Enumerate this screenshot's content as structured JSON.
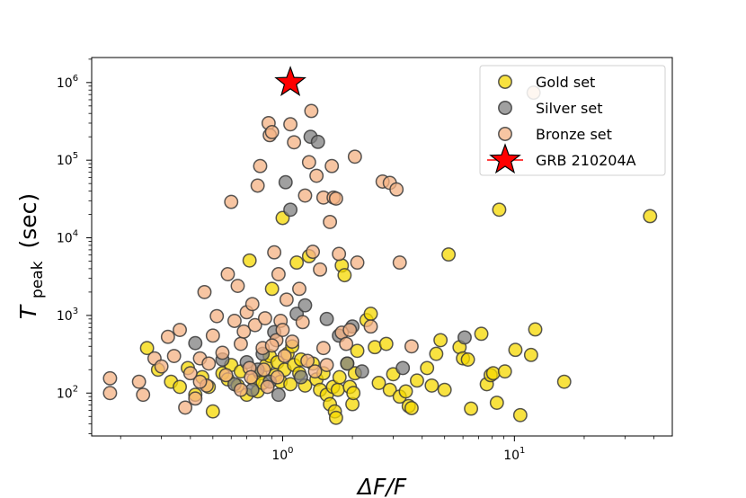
{
  "chart_data": {
    "type": "scatter",
    "xlabel": "ΔF/F",
    "ylabel_main": "T",
    "ylabel_sub": "peak",
    "ylabel_unit": "(sec)",
    "x_scale": "log",
    "y_scale": "log",
    "xlim": [
      0.15,
      48
    ],
    "ylim": [
      28,
      2100000
    ],
    "grid": false,
    "legend_position": "top-right",
    "x_ticks": [
      {
        "value": 1,
        "base": "10",
        "exp": "0"
      },
      {
        "value": 10,
        "base": "10",
        "exp": "1"
      }
    ],
    "y_ticks": [
      {
        "value": 100,
        "base": "10",
        "exp": "2"
      },
      {
        "value": 1000,
        "base": "10",
        "exp": "3"
      },
      {
        "value": 10000,
        "base": "10",
        "exp": "4"
      },
      {
        "value": 100000,
        "base": "10",
        "exp": "5"
      },
      {
        "value": 1000000,
        "base": "10",
        "exp": "6"
      }
    ],
    "series": [
      {
        "name": "Gold set",
        "marker": "circle",
        "color": "#f5d800",
        "edge": "#3a3a3a",
        "points": [
          [
            0.26,
            380
          ],
          [
            0.29,
            200
          ],
          [
            0.33,
            140
          ],
          [
            0.36,
            120
          ],
          [
            0.39,
            210
          ],
          [
            0.42,
            95
          ],
          [
            0.45,
            160
          ],
          [
            0.48,
            120
          ],
          [
            0.5,
            58
          ],
          [
            0.55,
            180
          ],
          [
            0.58,
            150
          ],
          [
            0.6,
            230
          ],
          [
            0.64,
            125
          ],
          [
            0.66,
            190
          ],
          [
            0.7,
            95
          ],
          [
            0.72,
            5100
          ],
          [
            0.75,
            150
          ],
          [
            0.78,
            105
          ],
          [
            0.8,
            180
          ],
          [
            0.82,
            135
          ],
          [
            0.85,
            230
          ],
          [
            0.88,
            300
          ],
          [
            0.9,
            2200
          ],
          [
            0.93,
            170
          ],
          [
            0.95,
            250
          ],
          [
            0.98,
            140
          ],
          [
            1.0,
            18000
          ],
          [
            1.02,
            200
          ],
          [
            1.05,
            320
          ],
          [
            1.08,
            130
          ],
          [
            1.1,
            400
          ],
          [
            1.12,
            230
          ],
          [
            1.15,
            4800
          ],
          [
            1.18,
            180
          ],
          [
            1.2,
            270
          ],
          [
            1.25,
            125
          ],
          [
            1.3,
            5800
          ],
          [
            1.35,
            240
          ],
          [
            1.4,
            150
          ],
          [
            1.45,
            110
          ],
          [
            1.5,
            180
          ],
          [
            1.55,
            95
          ],
          [
            1.6,
            72
          ],
          [
            1.65,
            120
          ],
          [
            1.68,
            58
          ],
          [
            1.7,
            48
          ],
          [
            1.73,
            110
          ],
          [
            1.76,
            160
          ],
          [
            1.8,
            4400
          ],
          [
            1.85,
            3300
          ],
          [
            1.9,
            240
          ],
          [
            1.95,
            120
          ],
          [
            2.0,
            72
          ],
          [
            2.02,
            100
          ],
          [
            2.05,
            180
          ],
          [
            2.1,
            350
          ],
          [
            2.3,
            870
          ],
          [
            2.4,
            1050
          ],
          [
            2.5,
            390
          ],
          [
            2.6,
            135
          ],
          [
            2.8,
            430
          ],
          [
            2.9,
            110
          ],
          [
            3.0,
            175
          ],
          [
            3.2,
            90
          ],
          [
            3.4,
            105
          ],
          [
            3.5,
            68
          ],
          [
            3.6,
            64
          ],
          [
            3.8,
            145
          ],
          [
            4.2,
            210
          ],
          [
            4.4,
            125
          ],
          [
            4.6,
            320
          ],
          [
            4.8,
            480
          ],
          [
            5.0,
            110
          ],
          [
            5.2,
            6100
          ],
          [
            5.8,
            390
          ],
          [
            6.0,
            280
          ],
          [
            6.3,
            270
          ],
          [
            6.5,
            63
          ],
          [
            7.2,
            580
          ],
          [
            7.6,
            130
          ],
          [
            7.9,
            170
          ],
          [
            8.1,
            180
          ],
          [
            8.4,
            75
          ],
          [
            8.6,
            23000
          ],
          [
            9.1,
            190
          ],
          [
            10.1,
            360
          ],
          [
            10.6,
            52
          ],
          [
            11.8,
            310
          ],
          [
            12.3,
            660
          ],
          [
            16.4,
            140
          ],
          [
            38.5,
            19000
          ]
        ]
      },
      {
        "name": "Silver set",
        "marker": "circle",
        "color": "#808080",
        "edge": "#3a3a3a",
        "points": [
          [
            0.42,
            440
          ],
          [
            0.55,
            270
          ],
          [
            0.62,
            130
          ],
          [
            0.7,
            250
          ],
          [
            0.74,
            110
          ],
          [
            0.78,
            200
          ],
          [
            0.82,
            320
          ],
          [
            0.88,
            140
          ],
          [
            0.92,
            610
          ],
          [
            0.96,
            95
          ],
          [
            1.03,
            52000
          ],
          [
            1.08,
            23000
          ],
          [
            1.15,
            1050
          ],
          [
            1.2,
            160
          ],
          [
            1.25,
            1350
          ],
          [
            1.32,
            200000
          ],
          [
            1.42,
            172000
          ],
          [
            1.55,
            900
          ],
          [
            1.75,
            550
          ],
          [
            1.9,
            240
          ],
          [
            2.0,
            720
          ],
          [
            2.2,
            190
          ],
          [
            3.3,
            210
          ],
          [
            6.1,
            520
          ]
        ]
      },
      {
        "name": "Bronze set",
        "marker": "circle",
        "color": "#f4b183",
        "edge": "#3a3a3a",
        "points": [
          [
            0.18,
            155
          ],
          [
            0.18,
            100
          ],
          [
            0.24,
            140
          ],
          [
            0.25,
            95
          ],
          [
            0.28,
            280
          ],
          [
            0.3,
            220
          ],
          [
            0.32,
            530
          ],
          [
            0.34,
            300
          ],
          [
            0.36,
            650
          ],
          [
            0.38,
            65
          ],
          [
            0.4,
            180
          ],
          [
            0.42,
            85
          ],
          [
            0.44,
            280
          ],
          [
            0.46,
            2000
          ],
          [
            0.47,
            125
          ],
          [
            0.48,
            240
          ],
          [
            0.5,
            550
          ],
          [
            0.52,
            980
          ],
          [
            0.55,
            330
          ],
          [
            0.58,
            3400
          ],
          [
            0.6,
            29000
          ],
          [
            0.62,
            850
          ],
          [
            0.64,
            2400
          ],
          [
            0.66,
            430
          ],
          [
            0.68,
            620
          ],
          [
            0.7,
            1100
          ],
          [
            0.72,
            210
          ],
          [
            0.74,
            1400
          ],
          [
            0.76,
            750
          ],
          [
            0.78,
            47000
          ],
          [
            0.8,
            84000
          ],
          [
            0.82,
            380
          ],
          [
            0.84,
            920
          ],
          [
            0.86,
            120
          ],
          [
            0.87,
            300000
          ],
          [
            0.88,
            210000
          ],
          [
            0.9,
            230000
          ],
          [
            0.92,
            6500
          ],
          [
            0.94,
            480
          ],
          [
            0.96,
            3400
          ],
          [
            0.98,
            850
          ],
          [
            1.0,
            650
          ],
          [
            1.04,
            1600
          ],
          [
            1.08,
            290000
          ],
          [
            1.12,
            170000
          ],
          [
            1.18,
            2200
          ],
          [
            1.25,
            35000
          ],
          [
            1.3,
            94000
          ],
          [
            1.33,
            430000
          ],
          [
            1.35,
            6600
          ],
          [
            1.4,
            63000
          ],
          [
            1.45,
            3900
          ],
          [
            1.5,
            33000
          ],
          [
            1.55,
            230
          ],
          [
            1.6,
            16000
          ],
          [
            1.63,
            84000
          ],
          [
            1.66,
            33000
          ],
          [
            1.7,
            32000
          ],
          [
            1.75,
            6200
          ],
          [
            1.8,
            600
          ],
          [
            1.88,
            430
          ],
          [
            1.95,
            650
          ],
          [
            2.05,
            111000
          ],
          [
            2.1,
            4800
          ],
          [
            2.4,
            720
          ],
          [
            2.7,
            53000
          ],
          [
            2.9,
            51000
          ],
          [
            3.1,
            42000
          ],
          [
            3.2,
            4800
          ],
          [
            3.6,
            400
          ],
          [
            12.1,
            740000
          ],
          [
            0.95,
            160
          ],
          [
            1.1,
            460
          ],
          [
            1.22,
            820
          ],
          [
            0.83,
            200
          ],
          [
            0.73,
            160
          ],
          [
            0.66,
            110
          ],
          [
            0.57,
            170
          ],
          [
            0.44,
            140
          ],
          [
            1.5,
            380
          ],
          [
            1.38,
            190
          ],
          [
            1.28,
            260
          ],
          [
            0.9,
            410
          ],
          [
            1.02,
            300
          ]
        ]
      },
      {
        "name": "GRB 210204A",
        "marker": "star",
        "color": "#ff0000",
        "edge": "#000000",
        "points": [
          [
            1.08,
            1000000
          ]
        ]
      }
    ]
  }
}
